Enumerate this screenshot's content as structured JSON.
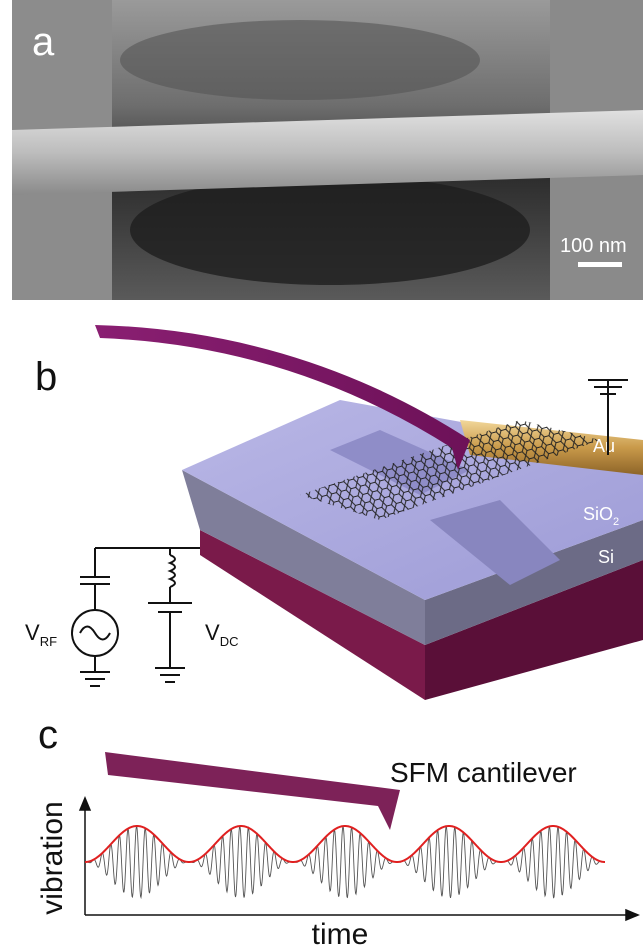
{
  "panel_a": {
    "label": "a",
    "scale_bar": "100 nm"
  },
  "panel_b": {
    "label": "b",
    "layers": {
      "au": "Au",
      "sio2": {
        "text": "SiO",
        "sub": "2"
      },
      "si": "Si"
    },
    "sources": {
      "rf": {
        "text": "V",
        "sub": "RF"
      },
      "dc": {
        "text": "V",
        "sub": "DC"
      }
    }
  },
  "panel_c": {
    "label": "c",
    "cantilever": "SFM cantilever",
    "y_axis": "vibration",
    "x_axis": "time"
  }
}
